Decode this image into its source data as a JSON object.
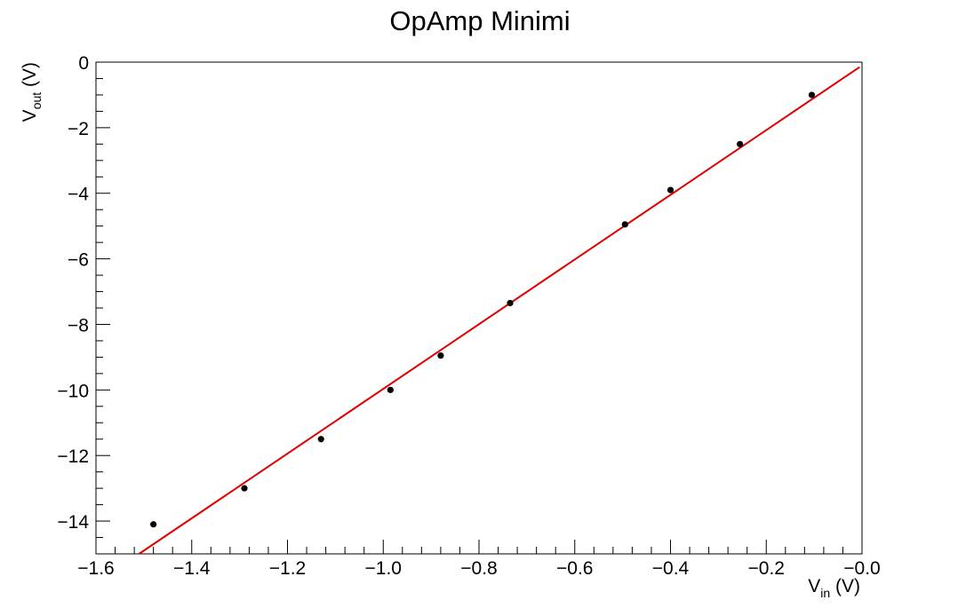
{
  "chart_data": {
    "type": "scatter",
    "title": "OpAmp Minimi",
    "xlabel": {
      "main": "V",
      "sub": "in",
      "unit": " (V)"
    },
    "ylabel": {
      "main": "V",
      "sub": "out",
      "unit": " (V)"
    },
    "xlim": [
      -1.6,
      0.0
    ],
    "ylim": [
      -15,
      0
    ],
    "x_ticks": [
      -1.6,
      -1.4,
      -1.2,
      -1.0,
      -0.8,
      -0.6,
      -0.4,
      -0.2,
      0.0
    ],
    "x_tick_labels": [
      "−1.6",
      "−1.4",
      "−1.2",
      "−1.0",
      "−0.8",
      "−0.6",
      "−0.4",
      "−0.2",
      "−0.0"
    ],
    "y_ticks": [
      0,
      -2,
      -4,
      -6,
      -8,
      -10,
      -12,
      -14
    ],
    "y_tick_labels": [
      "0",
      "−2",
      "−4",
      "−6",
      "−8",
      "−10",
      "−12",
      "−14"
    ],
    "grid": false,
    "series": [
      {
        "kind": "points",
        "color": "#000000",
        "x": [
          -1.48,
          -1.29,
          -1.13,
          -0.985,
          -0.88,
          -0.735,
          -0.495,
          -0.4,
          -0.255,
          -0.105
        ],
        "y": [
          -14.1,
          -13.0,
          -11.5,
          -10.0,
          -8.95,
          -7.35,
          -4.95,
          -3.9,
          -2.5,
          -1.0
        ]
      },
      {
        "kind": "fit-line",
        "color": "#e00000",
        "x": [
          -1.51,
          -0.005
        ],
        "y": [
          -15.0,
          -0.15
        ]
      }
    ]
  }
}
